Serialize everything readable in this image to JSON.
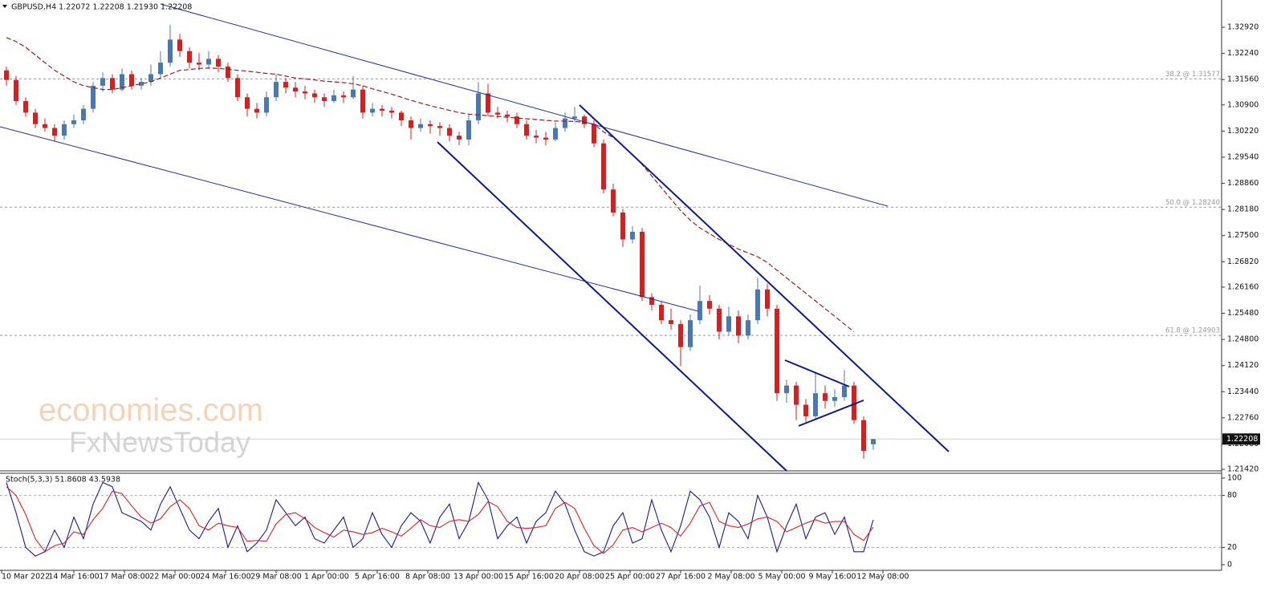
{
  "chart_data": [
    {
      "type": "candlestick",
      "title": "GBPUSD,H4  1.22072 1.22208 1.21930 1.22208",
      "up_color": "#4a78b0",
      "down_color": "#d81e1e",
      "candles": [
        [
          1.318,
          1.319,
          1.314,
          1.3155
        ],
        [
          1.3155,
          1.3165,
          1.309,
          1.31
        ],
        [
          1.31,
          1.311,
          1.306,
          1.307
        ],
        [
          1.307,
          1.308,
          1.303,
          1.304
        ],
        [
          1.304,
          1.3055,
          1.302,
          1.303
        ],
        [
          1.303,
          1.304,
          1.2995,
          1.301
        ],
        [
          1.301,
          1.305,
          1.3,
          1.304
        ],
        [
          1.304,
          1.3065,
          1.303,
          1.305
        ],
        [
          1.305,
          1.309,
          1.304,
          1.308
        ],
        [
          1.308,
          1.315,
          1.307,
          1.314
        ],
        [
          1.314,
          1.3175,
          1.3125,
          1.316
        ],
        [
          1.316,
          1.317,
          1.312,
          1.313
        ],
        [
          1.313,
          1.3185,
          1.3125,
          1.317
        ],
        [
          1.317,
          1.318,
          1.313,
          1.314
        ],
        [
          1.314,
          1.316,
          1.313,
          1.315
        ],
        [
          1.315,
          1.3195,
          1.314,
          1.317
        ],
        [
          1.317,
          1.323,
          1.316,
          1.32
        ],
        [
          1.32,
          1.3298,
          1.319,
          1.326
        ],
        [
          1.326,
          1.3275,
          1.3215,
          1.323
        ],
        [
          1.323,
          1.324,
          1.3185,
          1.32
        ],
        [
          1.32,
          1.3225,
          1.318,
          1.3195
        ],
        [
          1.3195,
          1.323,
          1.3185,
          1.321
        ],
        [
          1.321,
          1.322,
          1.3175,
          1.319
        ],
        [
          1.319,
          1.32,
          1.315,
          1.316
        ],
        [
          1.316,
          1.317,
          1.31,
          1.311
        ],
        [
          1.311,
          1.312,
          1.306,
          1.308
        ],
        [
          1.308,
          1.3095,
          1.3055,
          1.307
        ],
        [
          1.307,
          1.3125,
          1.306,
          1.311
        ],
        [
          1.311,
          1.317,
          1.31,
          1.315
        ],
        [
          1.315,
          1.316,
          1.312,
          1.3135
        ],
        [
          1.3135,
          1.315,
          1.311,
          1.3125
        ],
        [
          1.3125,
          1.314,
          1.3105,
          1.312
        ],
        [
          1.312,
          1.313,
          1.3095,
          1.311
        ],
        [
          1.311,
          1.312,
          1.3085,
          1.31
        ],
        [
          1.31,
          1.313,
          1.3095,
          1.3115
        ],
        [
          1.3115,
          1.3125,
          1.3095,
          1.311
        ],
        [
          1.311,
          1.3165,
          1.3105,
          1.313
        ],
        [
          1.313,
          1.314,
          1.3055,
          1.307
        ],
        [
          1.307,
          1.3095,
          1.306,
          1.308
        ],
        [
          1.308,
          1.309,
          1.306,
          1.3075
        ],
        [
          1.3075,
          1.3085,
          1.3055,
          1.307
        ],
        [
          1.307,
          1.3075,
          1.3035,
          1.305
        ],
        [
          1.305,
          1.306,
          1.3,
          1.303
        ],
        [
          1.303,
          1.3055,
          1.302,
          1.304
        ],
        [
          1.304,
          1.305,
          1.3015,
          1.3035
        ],
        [
          1.3035,
          1.3045,
          1.301,
          1.303
        ],
        [
          1.303,
          1.304,
          1.2995,
          1.301
        ],
        [
          1.301,
          1.302,
          1.2985,
          1.3
        ],
        [
          1.3,
          1.3065,
          1.2985,
          1.305
        ],
        [
          1.305,
          1.315,
          1.304,
          1.312
        ],
        [
          1.312,
          1.3145,
          1.306,
          1.307
        ],
        [
          1.307,
          1.3085,
          1.3055,
          1.3065
        ],
        [
          1.3065,
          1.3075,
          1.3045,
          1.306
        ],
        [
          1.306,
          1.307,
          1.303,
          1.304
        ],
        [
          1.304,
          1.305,
          1.3,
          1.301
        ],
        [
          1.301,
          1.3025,
          1.299,
          1.3005
        ],
        [
          1.3005,
          1.302,
          1.2985,
          1.3
        ],
        [
          1.3,
          1.3045,
          1.2995,
          1.303
        ],
        [
          1.303,
          1.307,
          1.302,
          1.3055
        ],
        [
          1.3055,
          1.3085,
          1.3045,
          1.306
        ],
        [
          1.306,
          1.3065,
          1.303,
          1.304
        ],
        [
          1.304,
          1.305,
          1.298,
          1.299
        ],
        [
          1.299,
          1.3,
          1.286,
          1.287
        ],
        [
          1.287,
          1.2885,
          1.28,
          1.281
        ],
        [
          1.281,
          1.282,
          1.272,
          1.274
        ],
        [
          1.274,
          1.2775,
          1.273,
          1.276
        ],
        [
          1.276,
          1.277,
          1.258,
          1.259
        ],
        [
          1.259,
          1.26,
          1.2555,
          1.257
        ],
        [
          1.257,
          1.258,
          1.252,
          1.253
        ],
        [
          1.253,
          1.256,
          1.2505,
          1.252
        ],
        [
          1.252,
          1.253,
          1.241,
          1.246
        ],
        [
          1.246,
          1.2545,
          1.245,
          1.253
        ],
        [
          1.253,
          1.262,
          1.252,
          1.258
        ],
        [
          1.258,
          1.2595,
          1.2545,
          1.256
        ],
        [
          1.256,
          1.257,
          1.248,
          1.25
        ],
        [
          1.25,
          1.2565,
          1.249,
          1.254
        ],
        [
          1.254,
          1.2555,
          1.247,
          1.249
        ],
        [
          1.249,
          1.2545,
          1.248,
          1.253
        ],
        [
          1.253,
          1.264,
          1.252,
          1.261
        ],
        [
          1.261,
          1.2625,
          1.254,
          1.256
        ],
        [
          1.256,
          1.257,
          1.232,
          1.234
        ],
        [
          1.234,
          1.2375,
          1.2315,
          1.236
        ],
        [
          1.236,
          1.237,
          1.227,
          1.231
        ],
        [
          1.231,
          1.2325,
          1.2265,
          1.228
        ],
        [
          1.228,
          1.2395,
          1.2275,
          1.234
        ],
        [
          1.234,
          1.236,
          1.23,
          1.232
        ],
        [
          1.232,
          1.235,
          1.2305,
          1.233
        ],
        [
          1.233,
          1.24,
          1.232,
          1.236
        ],
        [
          1.236,
          1.237,
          1.226,
          1.227
        ],
        [
          1.227,
          1.228,
          1.217,
          1.219
        ],
        [
          1.22072,
          1.22208,
          1.2193,
          1.22208
        ]
      ],
      "ma": {
        "color": "#9b1c1c",
        "values": [
          1.3265,
          1.3255,
          1.324,
          1.322,
          1.32,
          1.318,
          1.3165,
          1.315,
          1.314,
          1.3135,
          1.313,
          1.313,
          1.3135,
          1.314,
          1.3145,
          1.315,
          1.316,
          1.317,
          1.318,
          1.3182,
          1.3185,
          1.3186,
          1.3185,
          1.3183,
          1.318,
          1.3178,
          1.3175,
          1.3172,
          1.317,
          1.3165,
          1.316,
          1.3158,
          1.3155,
          1.3152,
          1.315,
          1.3148,
          1.3145,
          1.314,
          1.3132,
          1.3125,
          1.3118,
          1.311,
          1.3102,
          1.3095,
          1.3088,
          1.3082,
          1.3076,
          1.307,
          1.3066,
          1.3064,
          1.3062,
          1.306,
          1.3058,
          1.3056,
          1.3054,
          1.3052,
          1.305,
          1.3048,
          1.3048,
          1.3047,
          1.3045,
          1.304,
          1.302,
          1.3005,
          1.2985,
          1.296,
          1.2935,
          1.2905,
          1.2875,
          1.2845,
          1.2815,
          1.279,
          1.277,
          1.2755,
          1.274,
          1.2728,
          1.2715,
          1.2705,
          1.2695,
          1.268,
          1.266,
          1.264,
          1.262,
          1.26,
          1.258,
          1.256,
          1.254,
          1.252,
          1.25,
          null,
          null
        ]
      },
      "fib_levels": [
        {
          "value": 1.31577,
          "label": "38.2 @ 1.31577"
        },
        {
          "value": 1.2824,
          "label": "50.0 @ 1.28240"
        },
        {
          "value": 1.24903,
          "label": "61.8 @ 1.24903"
        }
      ],
      "current_price": 1.22208,
      "ylim": [
        1.2138,
        1.3363
      ],
      "yticks": [
        {
          "value": 1.3292,
          "label": "1.32920"
        },
        {
          "value": 1.3224,
          "label": "1.32240"
        },
        {
          "value": 1.3156,
          "label": "1.31560"
        },
        {
          "value": 1.309,
          "label": "1.30900"
        },
        {
          "value": 1.3022,
          "label": "1.30220"
        },
        {
          "value": 1.2954,
          "label": "1.29540"
        },
        {
          "value": 1.2886,
          "label": "1.28860"
        },
        {
          "value": 1.2818,
          "label": "1.28180"
        },
        {
          "value": 1.275,
          "label": "1.27500"
        },
        {
          "value": 1.2682,
          "label": "1.26820"
        },
        {
          "value": 1.2616,
          "label": "1.26160"
        },
        {
          "value": 1.2548,
          "label": "1.25480"
        },
        {
          "value": 1.248,
          "label": "1.24800"
        },
        {
          "value": 1.2412,
          "label": "1.24120"
        },
        {
          "value": 1.2344,
          "label": "1.23440"
        },
        {
          "value": 1.2276,
          "label": "1.22760"
        },
        {
          "value": 1.2208,
          "label": "1.22080"
        },
        {
          "value": 1.2142,
          "label": "1.21420"
        }
      ]
    },
    {
      "type": "line",
      "title": "Stoch(5,3,3) 51.8608 43.5938",
      "series": [
        {
          "color": "#1a1a9c",
          "values": [
            95,
            60,
            20,
            10,
            15,
            40,
            20,
            55,
            30,
            70,
            95,
            90,
            60,
            55,
            50,
            40,
            70,
            90,
            65,
            40,
            30,
            50,
            65,
            20,
            45,
            15,
            25,
            40,
            75,
            60,
            45,
            55,
            30,
            25,
            40,
            55,
            20,
            30,
            60,
            35,
            20,
            45,
            60,
            50,
            25,
            55,
            70,
            30,
            50,
            95,
            75,
            30,
            45,
            55,
            25,
            50,
            60,
            85,
            70,
            40,
            15,
            10,
            15,
            45,
            60,
            25,
            30,
            75,
            40,
            15,
            45,
            85,
            75,
            55,
            20,
            60,
            50,
            30,
            80,
            55,
            15,
            45,
            70,
            30,
            55,
            60,
            35,
            55,
            15,
            15,
            51.8608
          ]
        },
        {
          "color": "#e02020",
          "values": [
            90,
            80,
            58,
            30,
            15,
            22,
            25,
            38,
            35,
            52,
            65,
            85,
            82,
            68,
            55,
            48,
            53,
            67,
            75,
            65,
            45,
            40,
            48,
            45,
            43,
            27,
            28,
            27,
            47,
            58,
            60,
            53,
            43,
            37,
            32,
            40,
            38,
            35,
            37,
            42,
            38,
            33,
            42,
            52,
            45,
            43,
            50,
            52,
            50,
            58,
            73,
            67,
            50,
            43,
            42,
            43,
            45,
            65,
            72,
            65,
            42,
            22,
            13,
            23,
            40,
            43,
            38,
            43,
            48,
            43,
            33,
            48,
            68,
            72,
            50,
            45,
            43,
            47,
            53,
            55,
            50,
            38,
            43,
            48,
            52,
            48,
            50,
            50,
            35,
            28,
            43.5938
          ]
        }
      ],
      "levels": [
        80,
        20
      ],
      "ylim": [
        -6.5,
        105.6
      ],
      "yticks": [
        100,
        80,
        20,
        0
      ]
    }
  ],
  "x_labels": [
    "10 Mar 2022",
    "14 Mar 16:00",
    "17 Mar 08:00",
    "22 Mar 00:00",
    "24 Mar 16:00",
    "29 Mar 08:00",
    "1 Apr 00:00",
    "5 Apr 16:00",
    "8 Apr 08:00",
    "13 Apr 00:00",
    "15 Apr 16:00",
    "20 Apr 08:00",
    "25 Apr 00:00",
    "27 Apr 16:00",
    "2 May 08:00",
    "5 May 00:00",
    "9 May 16:00",
    "12 May 08:00"
  ],
  "watermark": [
    "economies.com",
    "FxNewsToday"
  ]
}
